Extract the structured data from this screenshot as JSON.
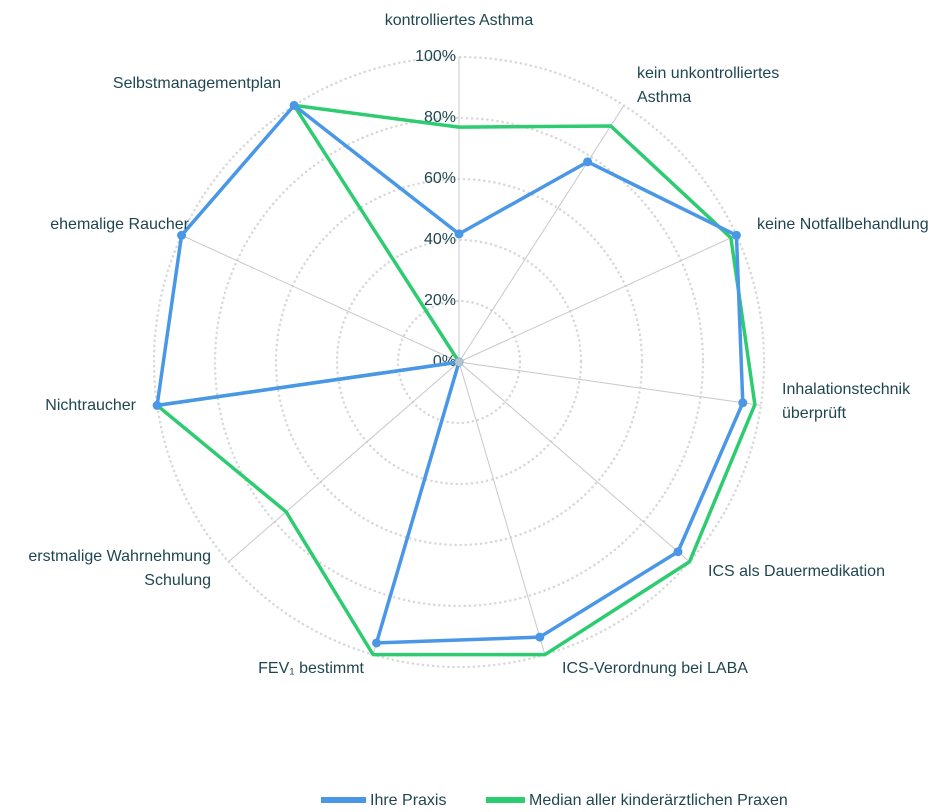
{
  "chart_data": {
    "type": "radar",
    "categories": [
      "kontrolliertes Asthma",
      "kein unkontrolliertes Asthma",
      "keine Notfallbehandlung",
      "Inhalationstechnik überprüft",
      "ICS als Dauermedikation",
      "ICS-Verordnung bei LABA",
      "FEV₁ bestimmt",
      "erstmalige Wahrnehmung Schulung",
      "Nichtraucher",
      "ehemalige Raucher",
      "Selbstmanagementplan"
    ],
    "series": [
      {
        "name": "Ihre Praxis",
        "color": "#4a97e8",
        "values": [
          42,
          78,
          100,
          94,
          95,
          94,
          96,
          0,
          100,
          100,
          100
        ]
      },
      {
        "name": "Median aller kinderärztlichen Praxen",
        "color": "#2ecc71",
        "values": [
          77,
          92,
          98,
          98,
          100,
          100,
          100,
          75,
          100,
          0,
          100
        ]
      }
    ],
    "ylim": [
      0,
      100
    ],
    "yticks": [
      {
        "value": 0,
        "label": "0%"
      },
      {
        "value": 20,
        "label": "20%"
      },
      {
        "value": 40,
        "label": "40%"
      },
      {
        "value": 60,
        "label": "60%"
      },
      {
        "value": 80,
        "label": "80%"
      },
      {
        "value": 100,
        "label": "100%"
      }
    ],
    "grid": true,
    "legend": "bottom"
  }
}
